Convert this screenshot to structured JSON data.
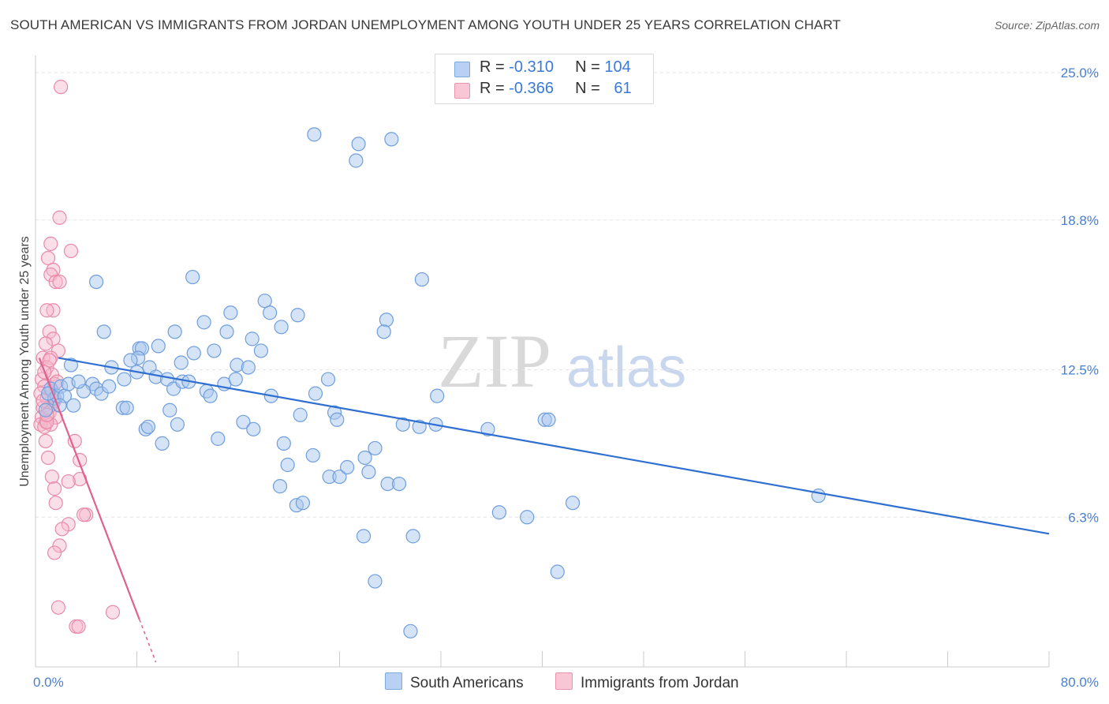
{
  "title": "SOUTH AMERICAN VS IMMIGRANTS FROM JORDAN UNEMPLOYMENT AMONG YOUTH UNDER 25 YEARS CORRELATION CHART",
  "source": "Source: ZipAtlas.com",
  "watermark": {
    "zip": "ZIP",
    "atlas": "atlas"
  },
  "legend": {
    "rows": [
      {
        "r_label": "R = ",
        "r_value": "-0.310",
        "n_label": "N = ",
        "n_value": "104"
      },
      {
        "r_label": "R = ",
        "r_value": "-0.366",
        "n_label": "N = ",
        "n_value": "61"
      }
    ]
  },
  "colors": {
    "blue_fill": "#a9c7ee",
    "blue_stroke": "#6f9ede",
    "blue_line": "#2f6fd1",
    "pink_fill": "#f6b9cb",
    "pink_stroke": "#e88aa8",
    "pink_line": "#e0608f",
    "grid": "#e3e3e3",
    "tick_text": "#4a7fd0"
  },
  "chart_data": {
    "type": "scatter",
    "title": "SOUTH AMERICAN VS IMMIGRANTS FROM JORDAN UNEMPLOYMENT AMONG YOUTH UNDER 25 YEARS CORRELATION CHART",
    "xlabel": "",
    "ylabel": "Unemployment Among Youth under 25 years",
    "xlim": [
      0,
      80
    ],
    "ylim": [
      0,
      25.5
    ],
    "x_tick_labels": [
      {
        "value": 0,
        "label": "0.0%"
      },
      {
        "value": 80,
        "label": "80.0%"
      }
    ],
    "y_ticks": [
      {
        "value": 6.3,
        "label": "6.3%"
      },
      {
        "value": 12.5,
        "label": "12.5%"
      },
      {
        "value": 18.8,
        "label": "18.8%"
      },
      {
        "value": 25.0,
        "label": "25.0%"
      }
    ],
    "x_minor_ticks": [
      0,
      8,
      16,
      24,
      32,
      40,
      48,
      56,
      64,
      72,
      80
    ],
    "series": [
      {
        "name": "South Americans",
        "color": "#a9c7ee",
        "R": -0.31,
        "N": 104,
        "trend": {
          "x": [
            1.8,
            80
          ],
          "y": [
            13.0,
            5.6
          ]
        },
        "points": [
          [
            22.0,
            22.4
          ],
          [
            25.5,
            22.0
          ],
          [
            28.1,
            22.2
          ],
          [
            25.3,
            21.3
          ],
          [
            4.8,
            16.2
          ],
          [
            12.4,
            16.4
          ],
          [
            30.5,
            16.3
          ],
          [
            18.1,
            15.4
          ],
          [
            15.4,
            14.9
          ],
          [
            18.5,
            14.9
          ],
          [
            20.7,
            14.8
          ],
          [
            27.7,
            14.6
          ],
          [
            5.4,
            14.1
          ],
          [
            11.0,
            14.1
          ],
          [
            13.3,
            14.5
          ],
          [
            15.1,
            14.1
          ],
          [
            17.1,
            13.8
          ],
          [
            19.4,
            14.3
          ],
          [
            27.5,
            14.1
          ],
          [
            8.2,
            13.4
          ],
          [
            8.4,
            13.4
          ],
          [
            8.1,
            13.0
          ],
          [
            7.5,
            12.9
          ],
          [
            9.7,
            13.5
          ],
          [
            12.5,
            13.2
          ],
          [
            14.1,
            13.3
          ],
          [
            17.8,
            13.3
          ],
          [
            2.8,
            12.7
          ],
          [
            6.0,
            12.6
          ],
          [
            9.0,
            12.6
          ],
          [
            11.5,
            12.8
          ],
          [
            15.9,
            12.7
          ],
          [
            16.8,
            12.6
          ],
          [
            4.5,
            11.9
          ],
          [
            4.8,
            11.7
          ],
          [
            5.2,
            11.5
          ],
          [
            7.0,
            12.1
          ],
          [
            8.0,
            12.4
          ],
          [
            9.5,
            12.2
          ],
          [
            10.4,
            12.1
          ],
          [
            10.9,
            11.7
          ],
          [
            11.6,
            12.0
          ],
          [
            12.1,
            12.0
          ],
          [
            13.5,
            11.6
          ],
          [
            13.8,
            11.4
          ],
          [
            14.9,
            11.9
          ],
          [
            15.8,
            12.1
          ],
          [
            23.1,
            12.1
          ],
          [
            1.2,
            11.7
          ],
          [
            1.5,
            11.3
          ],
          [
            1.7,
            11.4
          ],
          [
            2.0,
            11.8
          ],
          [
            2.3,
            11.4
          ],
          [
            3.0,
            11.0
          ],
          [
            3.8,
            11.6
          ],
          [
            6.9,
            10.9
          ],
          [
            7.2,
            10.9
          ],
          [
            10.6,
            10.8
          ],
          [
            16.4,
            10.3
          ],
          [
            18.6,
            11.4
          ],
          [
            22.1,
            11.5
          ],
          [
            31.7,
            11.4
          ],
          [
            8.7,
            10.0
          ],
          [
            8.9,
            10.1
          ],
          [
            10.0,
            9.4
          ],
          [
            14.4,
            9.6
          ],
          [
            17.2,
            10.0
          ],
          [
            19.6,
            9.4
          ],
          [
            20.9,
            10.6
          ],
          [
            23.6,
            10.7
          ],
          [
            23.8,
            10.4
          ],
          [
            29.0,
            10.2
          ],
          [
            30.3,
            10.1
          ],
          [
            35.7,
            10.0
          ],
          [
            40.2,
            10.4
          ],
          [
            40.5,
            10.4
          ],
          [
            19.9,
            8.5
          ],
          [
            21.9,
            8.9
          ],
          [
            23.2,
            8.0
          ],
          [
            24.0,
            8.0
          ],
          [
            24.6,
            8.4
          ],
          [
            26.0,
            8.8
          ],
          [
            26.8,
            9.2
          ],
          [
            19.3,
            7.6
          ],
          [
            20.6,
            6.8
          ],
          [
            21.1,
            6.9
          ],
          [
            26.3,
            8.2
          ],
          [
            27.8,
            7.7
          ],
          [
            28.7,
            7.7
          ],
          [
            36.6,
            6.5
          ],
          [
            38.8,
            6.3
          ],
          [
            42.4,
            6.9
          ],
          [
            61.8,
            7.2
          ],
          [
            25.9,
            5.5
          ],
          [
            29.8,
            5.5
          ],
          [
            41.2,
            4.0
          ],
          [
            26.8,
            3.6
          ],
          [
            29.6,
            1.5
          ],
          [
            1.0,
            11.5
          ],
          [
            1.9,
            11.0
          ],
          [
            2.6,
            11.9
          ],
          [
            3.4,
            12.0
          ],
          [
            0.8,
            10.8
          ],
          [
            5.8,
            11.8
          ],
          [
            11.2,
            10.2
          ],
          [
            31.6,
            10.2
          ]
        ]
      },
      {
        "name": "Immigrants from Jordan",
        "color": "#f6b9cb",
        "R": -0.366,
        "N": 61,
        "trend": {
          "x": [
            0.3,
            8.2
          ],
          "y": [
            13.0,
            2.0
          ]
        },
        "trend_dashed": {
          "x": [
            8.2,
            9.5
          ],
          "y": [
            2.0,
            0.2
          ]
        },
        "points": [
          [
            2.0,
            24.4
          ],
          [
            1.9,
            18.9
          ],
          [
            1.2,
            17.8
          ],
          [
            2.8,
            17.5
          ],
          [
            1.0,
            17.2
          ],
          [
            1.4,
            16.7
          ],
          [
            1.2,
            16.5
          ],
          [
            1.6,
            16.2
          ],
          [
            1.9,
            16.2
          ],
          [
            1.4,
            15.0
          ],
          [
            0.9,
            15.0
          ],
          [
            1.1,
            14.1
          ],
          [
            1.4,
            13.8
          ],
          [
            0.8,
            13.6
          ],
          [
            1.8,
            13.3
          ],
          [
            0.6,
            13.0
          ],
          [
            1.2,
            13.0
          ],
          [
            0.9,
            12.6
          ],
          [
            1.3,
            12.3
          ],
          [
            0.5,
            12.1
          ],
          [
            0.7,
            11.8
          ],
          [
            1.5,
            11.9
          ],
          [
            0.4,
            11.5
          ],
          [
            0.9,
            11.3
          ],
          [
            1.4,
            11.1
          ],
          [
            0.6,
            10.9
          ],
          [
            1.1,
            10.7
          ],
          [
            0.5,
            10.5
          ],
          [
            1.6,
            10.5
          ],
          [
            0.8,
            10.3
          ],
          [
            1.2,
            10.2
          ],
          [
            0.4,
            10.2
          ],
          [
            0.7,
            10.1
          ],
          [
            1.3,
            11.6
          ],
          [
            1.0,
            10.9
          ],
          [
            0.6,
            11.2
          ],
          [
            0.9,
            10.3
          ],
          [
            1.1,
            12.9
          ],
          [
            0.7,
            12.4
          ],
          [
            1.5,
            11.2
          ],
          [
            0.8,
            9.5
          ],
          [
            3.1,
            9.5
          ],
          [
            1.0,
            8.8
          ],
          [
            3.5,
            8.7
          ],
          [
            1.3,
            8.0
          ],
          [
            3.5,
            7.9
          ],
          [
            2.6,
            7.8
          ],
          [
            1.5,
            7.5
          ],
          [
            1.6,
            6.9
          ],
          [
            4.0,
            6.4
          ],
          [
            3.8,
            6.4
          ],
          [
            2.6,
            6.0
          ],
          [
            2.1,
            5.8
          ],
          [
            1.9,
            5.1
          ],
          [
            1.5,
            4.8
          ],
          [
            1.8,
            2.5
          ],
          [
            6.1,
            2.3
          ],
          [
            3.2,
            1.7
          ],
          [
            3.4,
            1.7
          ],
          [
            0.9,
            10.6
          ],
          [
            1.7,
            12.0
          ]
        ]
      }
    ]
  },
  "bottom_legend": {
    "series1": "South Americans",
    "series2": "Immigrants from Jordan"
  }
}
